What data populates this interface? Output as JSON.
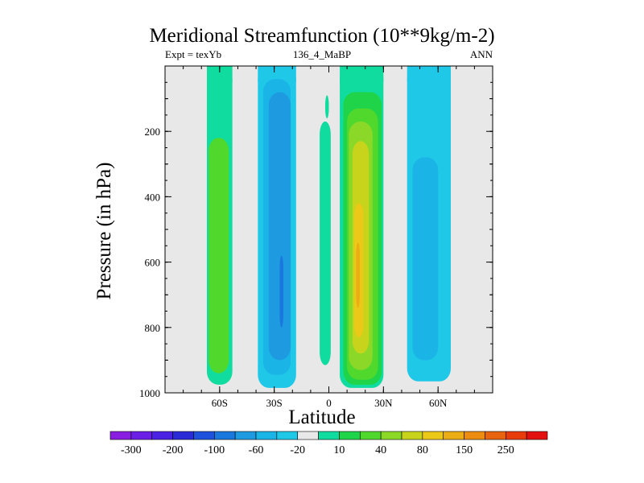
{
  "chart_data": {
    "type": "heatmap",
    "title": "Meridional Streamfunction (10**9kg/m-2)",
    "subtitle_left": "Expt = texYb",
    "subtitle_center": "136_4_MaBP",
    "subtitle_right": "ANN",
    "xlabel": "Latitude",
    "ylabel": "Pressure (in hPa)",
    "xlim": [
      -90,
      90
    ],
    "ylim": [
      1000,
      0
    ],
    "x_ticks": [
      {
        "value": -60,
        "label": "60S"
      },
      {
        "value": -30,
        "label": "30S"
      },
      {
        "value": 0,
        "label": "0"
      },
      {
        "value": 30,
        "label": "30N"
      },
      {
        "value": 60,
        "label": "60N"
      }
    ],
    "y_ticks": [
      {
        "value": 200,
        "label": "200"
      },
      {
        "value": 400,
        "label": "400"
      },
      {
        "value": 600,
        "label": "600"
      },
      {
        "value": 800,
        "label": "800"
      },
      {
        "value": 1000,
        "label": "1000"
      }
    ],
    "background_color": "#e8e8e8",
    "colorbar": {
      "colors": [
        "#8a1ee0",
        "#6a1ee6",
        "#4a22e4",
        "#2a2ad6",
        "#1e52dc",
        "#1a78dc",
        "#1e9ae0",
        "#1ab4e6",
        "#20c8e8",
        "#e8e8e8",
        "#10dca0",
        "#20d44a",
        "#50d82c",
        "#8cd828",
        "#c8d41c",
        "#ecc818",
        "#ecac14",
        "#ec8c10",
        "#e8640e",
        "#e83c0c",
        "#e41010"
      ],
      "labels": [
        "-300",
        "-200",
        "-100",
        "-60",
        "-20",
        "10",
        "40",
        "80",
        "150",
        "250"
      ]
    },
    "regions": [
      {
        "lat": [
          -67,
          -53
        ],
        "p": [
          0,
          975
        ],
        "color": "#10dca0"
      },
      {
        "lat": [
          -66,
          -55
        ],
        "p": [
          220,
          940
        ],
        "color": "#50d82c"
      },
      {
        "lat": [
          -39,
          -18
        ],
        "p": [
          0,
          985
        ],
        "color": "#20c8e8"
      },
      {
        "lat": [
          -36,
          -21
        ],
        "p": [
          40,
          945
        ],
        "color": "#1ab4e6"
      },
      {
        "lat": [
          -33,
          -21
        ],
        "p": [
          80,
          900
        ],
        "color": "#1e9ae0"
      },
      {
        "lat": [
          -27,
          -25
        ],
        "p": [
          580,
          800
        ],
        "color": "#1a78dc"
      },
      {
        "lat": [
          -5,
          1
        ],
        "p": [
          170,
          915
        ],
        "color": "#10dca0"
      },
      {
        "lat": [
          -2,
          0
        ],
        "p": [
          90,
          160
        ],
        "color": "#10dca0"
      },
      {
        "lat": [
          6,
          30
        ],
        "p": [
          0,
          985
        ],
        "color": "#10dca0"
      },
      {
        "lat": [
          8,
          29
        ],
        "p": [
          80,
          975
        ],
        "color": "#20d44a"
      },
      {
        "lat": [
          10,
          27
        ],
        "p": [
          130,
          960
        ],
        "color": "#50d82c"
      },
      {
        "lat": [
          11,
          24
        ],
        "p": [
          170,
          930
        ],
        "color": "#8cd828"
      },
      {
        "lat": [
          13,
          22
        ],
        "p": [
          230,
          880
        ],
        "color": "#c8d41c"
      },
      {
        "lat": [
          14,
          19
        ],
        "p": [
          420,
          830
        ],
        "color": "#ecc818"
      },
      {
        "lat": [
          15,
          17
        ],
        "p": [
          540,
          740
        ],
        "color": "#ecac14"
      },
      {
        "lat": [
          43,
          67
        ],
        "p": [
          0,
          965
        ],
        "color": "#20c8e8"
      },
      {
        "lat": [
          46,
          60
        ],
        "p": [
          280,
          900
        ],
        "color": "#1ab4e6"
      }
    ]
  }
}
